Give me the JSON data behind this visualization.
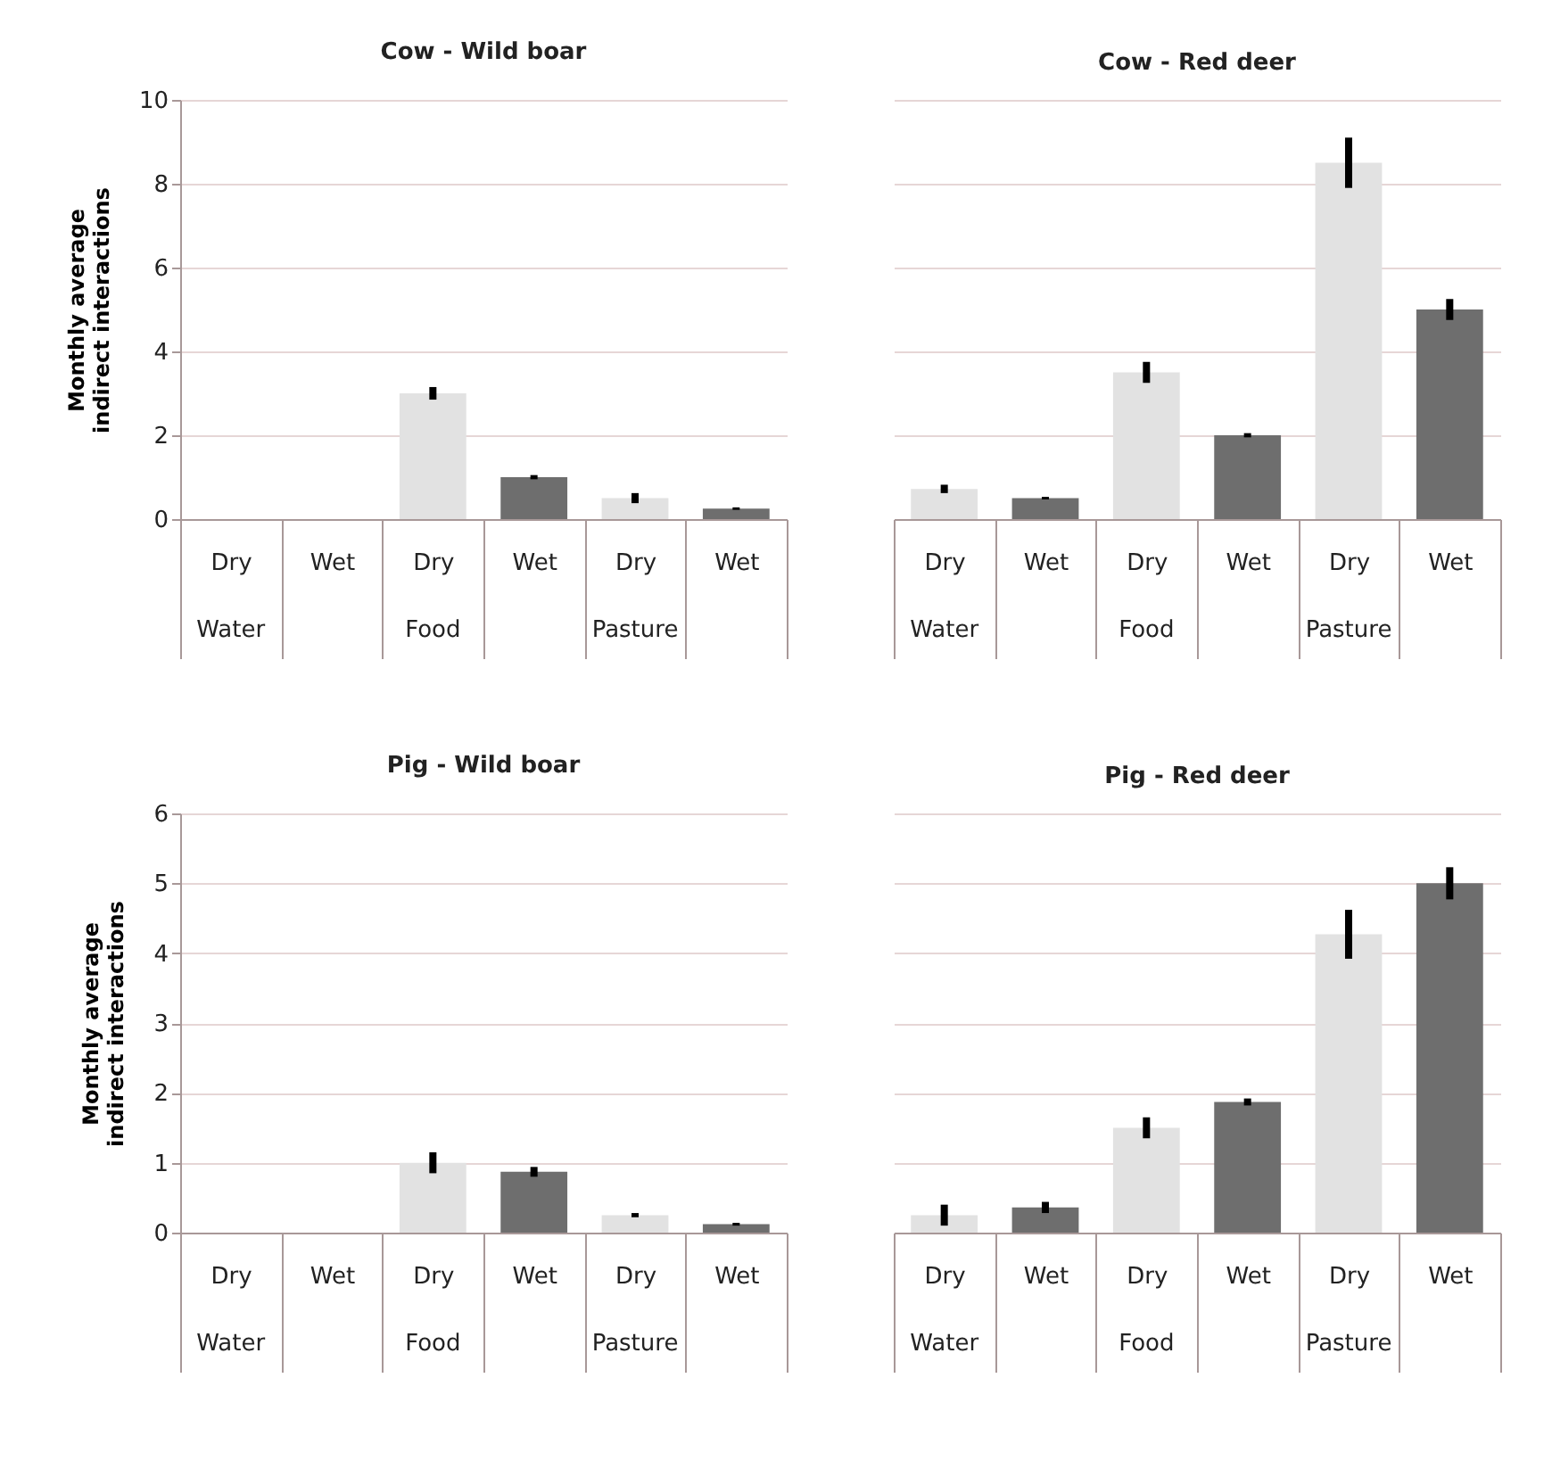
{
  "chart_data": [
    {
      "type": "bar",
      "title": "Cow - Wild boar",
      "ylabel": "Monthly average indirect interactions",
      "categories": [
        "Dry",
        "Wet",
        "Dry",
        "Wet",
        "Dry",
        "Wet"
      ],
      "annotations": [
        "Water",
        "Food",
        "Pasture"
      ],
      "values": [
        0,
        0,
        3.0,
        1.0,
        0.5,
        0.25
      ],
      "errors": [
        null,
        null,
        0.15,
        0.05,
        0.12,
        0.03
      ],
      "colors": [
        "#e2e2e2",
        "#6e6e6e",
        "#e2e2e2",
        "#6e6e6e",
        "#e2e2e2",
        "#6e6e6e"
      ],
      "ylim": [
        0,
        10
      ],
      "yticks": [
        0,
        2,
        4,
        6,
        8,
        10
      ],
      "grid": "y"
    },
    {
      "type": "bar",
      "title": "Cow - Red deer",
      "categories": [
        "Dry",
        "Wet",
        "Dry",
        "Wet",
        "Dry",
        "Wet"
      ],
      "annotations": [
        "Water",
        "Food",
        "Pasture"
      ],
      "values": [
        0.72,
        0.5,
        3.5,
        2.0,
        8.5,
        5.0
      ],
      "errors": [
        0.1,
        0.03,
        0.25,
        0.05,
        0.6,
        0.25
      ],
      "colors": [
        "#e2e2e2",
        "#6e6e6e",
        "#e2e2e2",
        "#6e6e6e",
        "#e2e2e2",
        "#6e6e6e"
      ],
      "ylim": [
        0,
        10
      ],
      "yticks": [
        0,
        2,
        4,
        6,
        8,
        10
      ],
      "grid": "y",
      "tick_labels": "x"
    },
    {
      "type": "bar",
      "title": "Pig - Wild boar",
      "ylabel": "Monthly average indirect interactions",
      "categories": [
        "Dry",
        "Wet",
        "Dry",
        "Wet",
        "Dry",
        "Wet"
      ],
      "annotations": [
        "Water",
        "Food",
        "Pasture"
      ],
      "values": [
        0,
        0,
        1.0,
        0.87,
        0.25,
        0.12
      ],
      "errors": [
        null,
        null,
        0.15,
        0.07,
        0.03,
        0.02
      ],
      "colors": [
        "#e2e2e2",
        "#6e6e6e",
        "#e2e2e2",
        "#6e6e6e",
        "#e2e2e2",
        "#6e6e6e"
      ],
      "ylim": [
        0,
        6
      ],
      "yticks": [
        0,
        1,
        2,
        3,
        4,
        5,
        6
      ],
      "grid": "y"
    },
    {
      "type": "bar",
      "title": "Pig - Red deer",
      "categories": [
        "Dry",
        "Wet",
        "Dry",
        "Wet",
        "Dry",
        "Wet"
      ],
      "annotations": [
        "Water",
        "Food",
        "Pasture"
      ],
      "values": [
        0.25,
        0.36,
        1.5,
        1.87,
        4.27,
        5.0
      ],
      "errors": [
        0.15,
        0.08,
        0.15,
        0.05,
        0.35,
        0.23
      ],
      "colors": [
        "#e2e2e2",
        "#6e6e6e",
        "#e2e2e2",
        "#6e6e6e",
        "#e2e2e2",
        "#6e6e6e"
      ],
      "ylim": [
        0,
        6
      ],
      "yticks": [
        0,
        1,
        2,
        3,
        4,
        5,
        6
      ],
      "grid": "y",
      "tick_labels": "x"
    }
  ]
}
